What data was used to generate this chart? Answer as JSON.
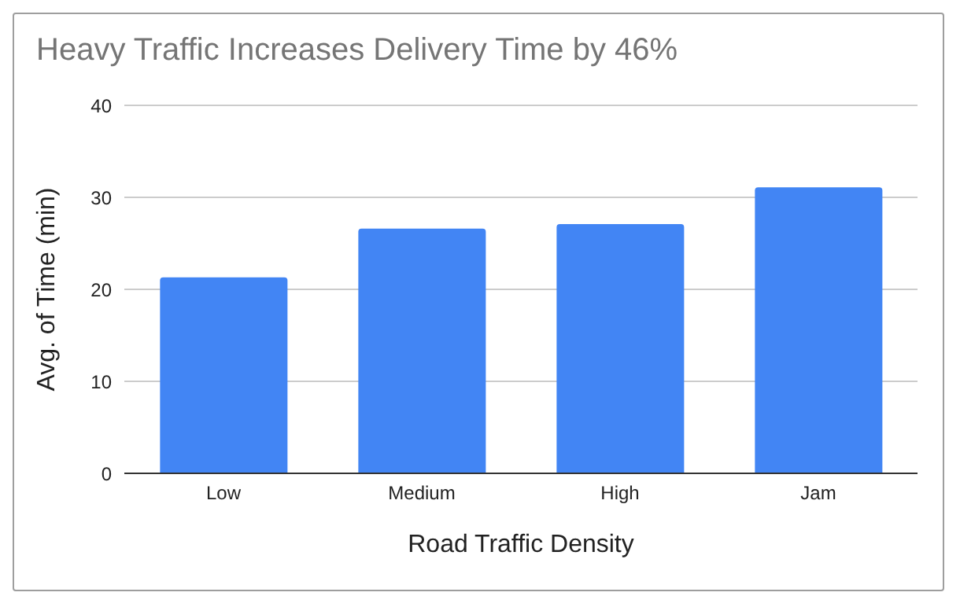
{
  "chart_data": {
    "type": "bar",
    "title": "Heavy Traffic Increases Delivery Time by 46%",
    "xlabel": "Road Traffic Density",
    "ylabel": "Avg. of Time (min)",
    "categories": [
      "Low",
      "Medium",
      "High",
      "Jam"
    ],
    "values": [
      21.3,
      26.6,
      27.1,
      31.1
    ],
    "color": "#4285f4",
    "ylim": [
      0,
      40
    ],
    "yticks": [
      0,
      10,
      20,
      30,
      40
    ],
    "grid": "y"
  }
}
